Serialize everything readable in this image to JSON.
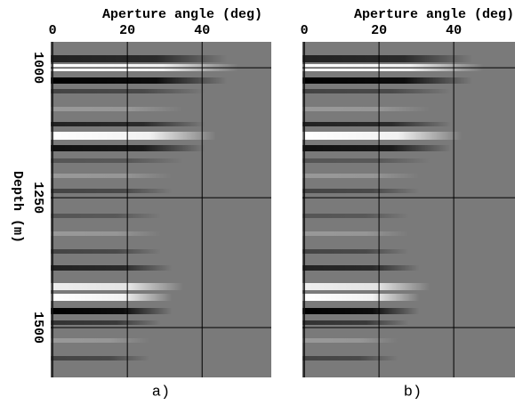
{
  "chart_data": [
    {
      "type": "image",
      "xlabel": "Aperture angle (deg)",
      "ylabel": "Depth (m)",
      "caption": "a)",
      "xlim": [
        -0.5,
        58.5
      ],
      "xticks": [
        0,
        20,
        40
      ],
      "ylim": [
        950,
        1596
      ],
      "yticks": [
        1000,
        1250,
        1500
      ],
      "grid": true
    },
    {
      "type": "image",
      "xlabel": "Aperture angle (deg)",
      "caption": "b)",
      "xlim": [
        -0.5,
        56.4
      ],
      "xticks": [
        0,
        20,
        40
      ],
      "ylim": [
        950,
        1596
      ],
      "grid": true
    }
  ]
}
